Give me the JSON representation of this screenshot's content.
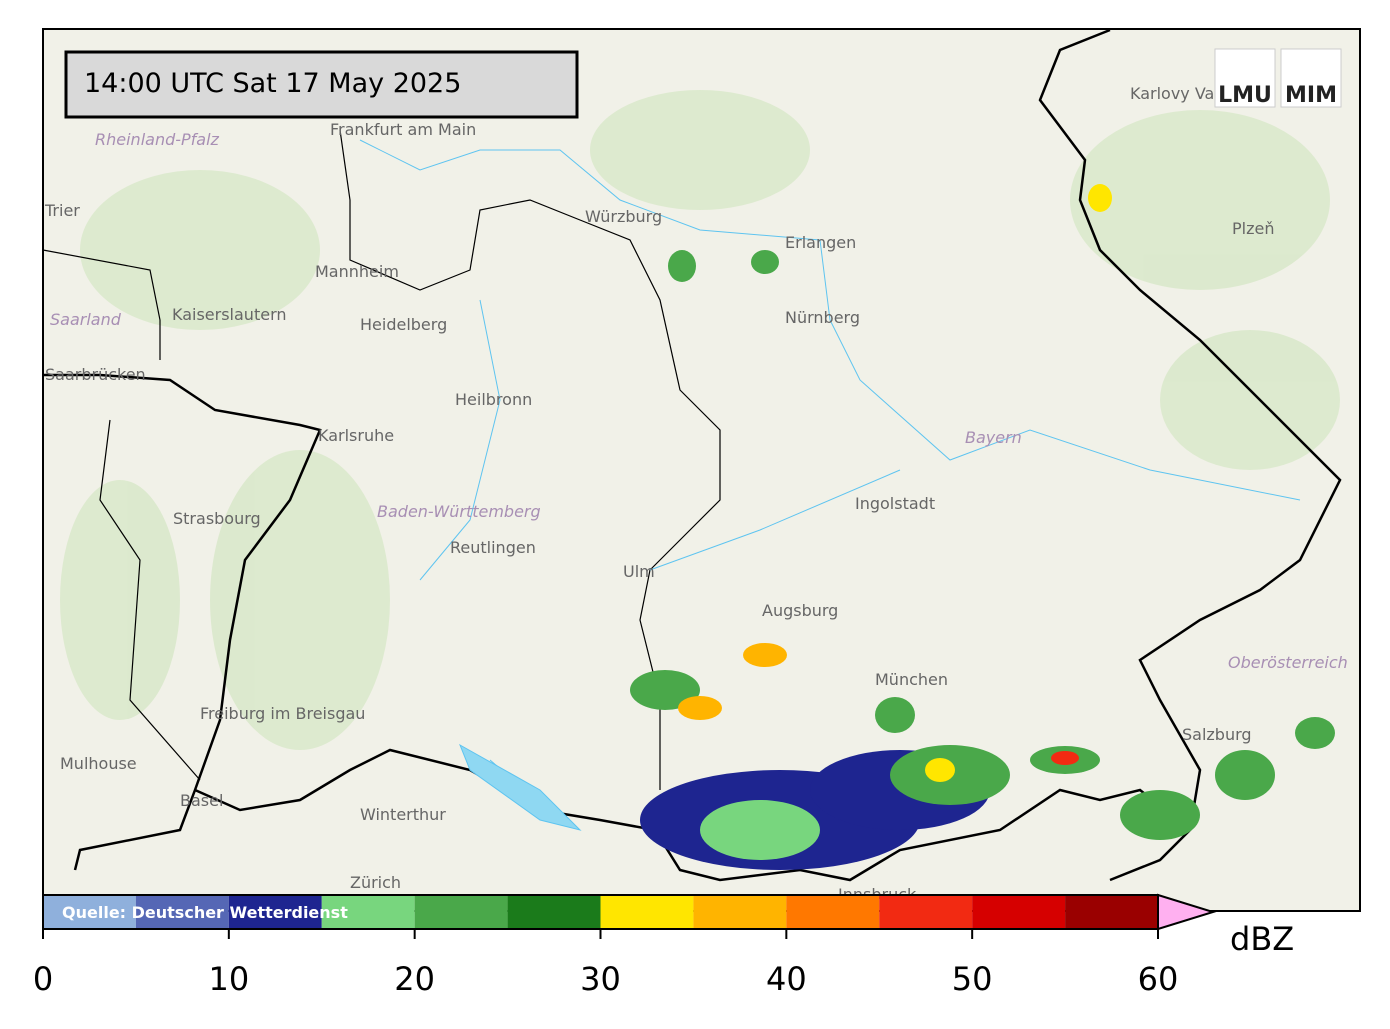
{
  "timestamp": "14:00 UTC  Sat 17 May 2025",
  "logo": {
    "left": "LMU",
    "right": "MIM"
  },
  "places": [
    "Frankfurt am Main",
    "Würzburg",
    "Erlangen",
    "Nürnberg",
    "Mannheim",
    "Heidelberg",
    "Kaiserslautern",
    "Saarland",
    "Saarbrücken",
    "Rheinland-Pfalz",
    "Trier",
    "Heilbronn",
    "Karlsruhe",
    "Strasbourg",
    "Baden-Württemberg",
    "Reutlingen",
    "Ulm",
    "Augsburg",
    "Ingolstadt",
    "Bayern",
    "München",
    "Freiburg im Breisgau",
    "Mulhouse",
    "Basel",
    "Winterthur",
    "Zürich",
    "Salzburg",
    "Oberösterreich",
    "Karlovy Vary",
    "Plzeň",
    "Innsbruck"
  ],
  "colorbar": {
    "source": "Quelle: Deutscher Wetterdienst",
    "label": "dBZ",
    "bounds": [
      0,
      5,
      10,
      15,
      20,
      25,
      30,
      35,
      40,
      45,
      50,
      55,
      60
    ],
    "colors": [
      "#8fb0dc",
      "#5567b5",
      "#1e2590",
      "#78d67e",
      "#4aa84a",
      "#1b7b1b",
      "#ffe600",
      "#ffb400",
      "#ff7800",
      "#f22a12",
      "#d60000",
      "#9a0000"
    ],
    "extend_color": "#ffb0f0",
    "xlim": [
      0,
      60
    ],
    "xticks": [
      0,
      10,
      20,
      30,
      40,
      50,
      60
    ]
  }
}
